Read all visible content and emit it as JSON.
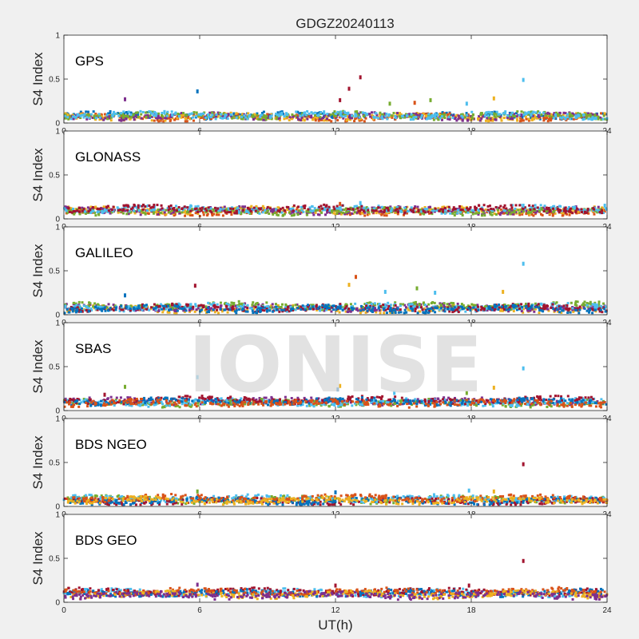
{
  "figure": {
    "title": "GDGZ20240113",
    "watermark": "IONISE",
    "xlabel": "UT(h)"
  },
  "chart_data": [
    {
      "type": "scatter",
      "panel_label": "GPS",
      "ylabel": "S4 Index",
      "xlim": [
        0,
        24
      ],
      "ylim": [
        0,
        1
      ],
      "xticks": [
        "0",
        "6",
        "12",
        "18",
        "24"
      ],
      "yticks": [
        "0",
        "0.5",
        "1"
      ],
      "baseline": 0.08,
      "spikes": [
        {
          "x": 2.7,
          "y": 0.27,
          "color": "#7E2F8E"
        },
        {
          "x": 5.9,
          "y": 0.36,
          "color": "#0072BD"
        },
        {
          "x": 12.2,
          "y": 0.26,
          "color": "#A2142F"
        },
        {
          "x": 12.6,
          "y": 0.39,
          "color": "#A2142F"
        },
        {
          "x": 13.1,
          "y": 0.52,
          "color": "#A2142F"
        },
        {
          "x": 14.4,
          "y": 0.22,
          "color": "#77AC30"
        },
        {
          "x": 15.5,
          "y": 0.23,
          "color": "#D95319"
        },
        {
          "x": 16.2,
          "y": 0.26,
          "color": "#77AC30"
        },
        {
          "x": 17.8,
          "y": 0.22,
          "color": "#4DBEEE"
        },
        {
          "x": 19.0,
          "y": 0.28,
          "color": "#EDB120"
        },
        {
          "x": 20.3,
          "y": 0.49,
          "color": "#4DBEEE"
        }
      ]
    },
    {
      "type": "scatter",
      "panel_label": "GLONASS",
      "ylabel": "S4 Index",
      "xlim": [
        0,
        24
      ],
      "ylim": [
        0,
        1
      ],
      "xticks": [
        "0",
        "6",
        "12",
        "18",
        "24"
      ],
      "yticks": [
        "0",
        "0.5",
        "1"
      ],
      "baseline": 0.09,
      "spikes": [
        {
          "x": 12.2,
          "y": 0.17,
          "color": "#D95319"
        },
        {
          "x": 13.1,
          "y": 0.18,
          "color": "#4DBEEE"
        },
        {
          "x": 20.3,
          "y": 0.15,
          "color": "#4DBEEE"
        },
        {
          "x": 23.9,
          "y": 0.15,
          "color": "#4DBEEE"
        }
      ]
    },
    {
      "type": "scatter",
      "panel_label": "GALILEO",
      "ylabel": "S4 Index",
      "xlim": [
        0,
        24
      ],
      "ylim": [
        0,
        1
      ],
      "xticks": [
        "0",
        "6",
        "12",
        "18",
        "24"
      ],
      "yticks": [
        "0",
        "0.5",
        "1"
      ],
      "baseline": 0.08,
      "spikes": [
        {
          "x": 2.7,
          "y": 0.22,
          "color": "#0072BD"
        },
        {
          "x": 5.8,
          "y": 0.33,
          "color": "#A2142F"
        },
        {
          "x": 12.6,
          "y": 0.34,
          "color": "#EDB120"
        },
        {
          "x": 12.9,
          "y": 0.43,
          "color": "#D95319"
        },
        {
          "x": 14.2,
          "y": 0.26,
          "color": "#4DBEEE"
        },
        {
          "x": 15.6,
          "y": 0.3,
          "color": "#77AC30"
        },
        {
          "x": 16.4,
          "y": 0.25,
          "color": "#4DBEEE"
        },
        {
          "x": 19.4,
          "y": 0.26,
          "color": "#EDB120"
        },
        {
          "x": 20.3,
          "y": 0.58,
          "color": "#4DBEEE"
        }
      ]
    },
    {
      "type": "scatter",
      "panel_label": "SBAS",
      "ylabel": "S4 Index",
      "xlim": [
        0,
        24
      ],
      "ylim": [
        0,
        1
      ],
      "xticks": [
        "0",
        "6",
        "12",
        "18",
        "24"
      ],
      "yticks": [
        "0",
        "0.5",
        "1"
      ],
      "baseline": 0.1,
      "spikes": [
        {
          "x": 1.8,
          "y": 0.18,
          "color": "#A2142F"
        },
        {
          "x": 2.7,
          "y": 0.27,
          "color": "#77AC30"
        },
        {
          "x": 5.9,
          "y": 0.38,
          "color": "#4DBEEE"
        },
        {
          "x": 12.1,
          "y": 0.24,
          "color": "#0072BD"
        },
        {
          "x": 12.2,
          "y": 0.28,
          "color": "#EDB120"
        },
        {
          "x": 14.6,
          "y": 0.2,
          "color": "#4DBEEE"
        },
        {
          "x": 17.8,
          "y": 0.2,
          "color": "#77AC30"
        },
        {
          "x": 19.0,
          "y": 0.26,
          "color": "#EDB120"
        },
        {
          "x": 20.3,
          "y": 0.48,
          "color": "#4DBEEE"
        }
      ]
    },
    {
      "type": "scatter",
      "panel_label": "BDS NGEO",
      "ylabel": "S4 Index",
      "xlim": [
        0,
        24
      ],
      "ylim": [
        0,
        1
      ],
      "xticks": [
        "0",
        "6",
        "12",
        "18",
        "24"
      ],
      "yticks": [
        "0",
        "0.5",
        "1"
      ],
      "baseline": 0.08,
      "spikes": [
        {
          "x": 5.9,
          "y": 0.17,
          "color": "#77AC30"
        },
        {
          "x": 12.0,
          "y": 0.16,
          "color": "#0072BD"
        },
        {
          "x": 17.9,
          "y": 0.18,
          "color": "#4DBEEE"
        },
        {
          "x": 19.0,
          "y": 0.17,
          "color": "#EDB120"
        },
        {
          "x": 20.3,
          "y": 0.48,
          "color": "#A2142F"
        }
      ]
    },
    {
      "type": "scatter",
      "panel_label": "BDS GEO",
      "ylabel": "S4 Index",
      "xlim": [
        0,
        24
      ],
      "ylim": [
        0,
        1
      ],
      "xticks": [
        "0",
        "6",
        "12",
        "18",
        "24"
      ],
      "yticks": [
        "0",
        "0.5",
        "1"
      ],
      "baseline": 0.1,
      "spikes": [
        {
          "x": 5.9,
          "y": 0.2,
          "color": "#7E2F8E"
        },
        {
          "x": 12.0,
          "y": 0.19,
          "color": "#A2142F"
        },
        {
          "x": 17.9,
          "y": 0.19,
          "color": "#A2142F"
        },
        {
          "x": 20.3,
          "y": 0.47,
          "color": "#A2142F"
        }
      ]
    }
  ],
  "palette": [
    "#0072BD",
    "#D95319",
    "#EDB120",
    "#7E2F8E",
    "#77AC30",
    "#4DBEEE",
    "#A2142F"
  ]
}
